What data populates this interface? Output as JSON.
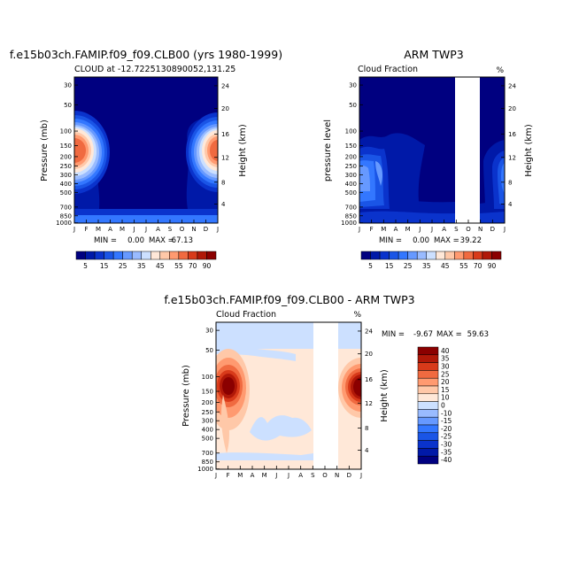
{
  "figure": {
    "width": 654,
    "height": 654
  },
  "chart_data": [
    {
      "type": "heatmap",
      "title": "f.e15b03ch.FAMIP.f09_f09.CLB00 (yrs 1980-1999)",
      "subtitle": "CLOUD at -12.7225130890052,131.25",
      "unit_label": "",
      "ylabel": "Pressure (mb)",
      "ylabel_right": "Height (km)",
      "x_ticks": [
        "J",
        "F",
        "M",
        "A",
        "M",
        "J",
        "J",
        "A",
        "S",
        "O",
        "N",
        "D",
        "J"
      ],
      "y_ticks": [
        "30",
        "50",
        "100",
        "150",
        "200",
        "250",
        "300",
        "400",
        "500",
        "700",
        "850",
        "1000"
      ],
      "y_ticks_right": [
        "24",
        "20",
        "16",
        "12",
        "8",
        "4"
      ],
      "min_label": "MIN =",
      "min_value": "0.00",
      "max_label": "MAX =",
      "max_value": "67.13",
      "colorbar_labels": [
        "5",
        "15",
        "25",
        "35",
        "45",
        "55",
        "70",
        "90"
      ]
    },
    {
      "type": "heatmap",
      "title": "ARM TWP3",
      "subtitle": "Cloud Fraction",
      "unit_label": "%",
      "ylabel": "pressure level",
      "ylabel_right": "Height (km)",
      "x_ticks": [
        "J",
        "F",
        "M",
        "A",
        "M",
        "J",
        "J",
        "A",
        "S",
        "O",
        "N",
        "D",
        "J"
      ],
      "y_ticks": [
        "30",
        "50",
        "100",
        "150",
        "200",
        "250",
        "300",
        "400",
        "500",
        "700",
        "850",
        "1000"
      ],
      "y_ticks_right": [
        "24",
        "20",
        "16",
        "12",
        "8",
        "4"
      ],
      "min_label": "MIN =",
      "min_value": "0.00",
      "max_label": "MAX =",
      "max_value": "39.22",
      "missing_months": [
        "Oct",
        "Nov"
      ],
      "colorbar_labels": [
        "5",
        "15",
        "25",
        "35",
        "45",
        "55",
        "70",
        "90"
      ]
    },
    {
      "type": "heatmap",
      "title": "f.e15b03ch.FAMIP.f09_f09.CLB00 - ARM TWP3",
      "subtitle": "Cloud Fraction",
      "unit_label": "%",
      "ylabel": "Pressure (mb)",
      "ylabel_right": "Height (km)",
      "x_ticks": [
        "J",
        "F",
        "M",
        "A",
        "M",
        "J",
        "J",
        "A",
        "S",
        "O",
        "N",
        "D",
        "J"
      ],
      "y_ticks": [
        "30",
        "50",
        "100",
        "150",
        "200",
        "250",
        "300",
        "400",
        "500",
        "700",
        "850",
        "1000"
      ],
      "y_ticks_right": [
        "24",
        "20",
        "16",
        "12",
        "8",
        "4"
      ],
      "min_label": "MIN =",
      "min_value": "-9.67",
      "max_label": "MAX =",
      "max_value": "59.63",
      "missing_months": [
        "Oct",
        "Nov"
      ],
      "colorbar_labels": [
        "40",
        "35",
        "30",
        "25",
        "20",
        "15",
        "10",
        "0",
        "-10",
        "-15",
        "-20",
        "-25",
        "-30",
        "-35",
        "-40"
      ]
    }
  ],
  "colors": {
    "abs_scale": [
      "#000080",
      "#0019a8",
      "#0a33cc",
      "#1a55e6",
      "#3377ff",
      "#6699ff",
      "#99bbff",
      "#cce0ff",
      "#ffe8d8",
      "#ffc8a8",
      "#ff9a70",
      "#f06a40",
      "#d83a1a",
      "#b01808",
      "#8b0000"
    ],
    "diff_scale": [
      "#8b0000",
      "#b01808",
      "#d83a1a",
      "#f06a40",
      "#ff9a70",
      "#ffc8a8",
      "#ffe8d8",
      "#cce0ff",
      "#99bbff",
      "#6699ff",
      "#3377ff",
      "#1a55e6",
      "#0a33cc",
      "#0019a8",
      "#000080"
    ]
  }
}
